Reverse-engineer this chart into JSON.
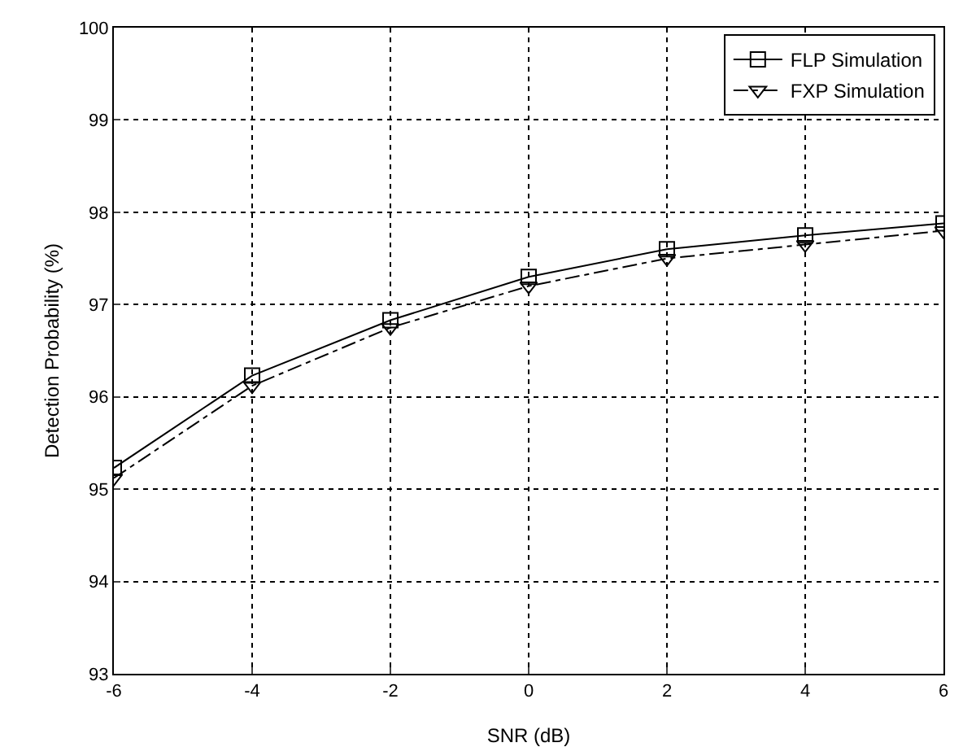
{
  "chart_data": {
    "type": "line",
    "xlabel": "SNR (dB)",
    "ylabel": "Detection Probability (%)",
    "x": [
      -6,
      -4,
      -2,
      0,
      2,
      4,
      6
    ],
    "series": [
      {
        "name": "FLP Simulation",
        "color": "#000000",
        "marker": "square",
        "line_style": "solid",
        "values": [
          95.23,
          96.23,
          96.83,
          97.3,
          97.6,
          97.75,
          97.88
        ]
      },
      {
        "name": "FXP Simulation",
        "color": "#000000",
        "marker": "triangle",
        "line_style": "dashed",
        "values": [
          95.12,
          96.12,
          96.75,
          97.2,
          97.5,
          97.65,
          97.8
        ]
      }
    ],
    "xlim": [
      -6,
      6
    ],
    "xticks": [
      -6,
      -4,
      -2,
      0,
      2,
      4,
      6
    ],
    "ylim": [
      93,
      100
    ],
    "yticks": [
      93,
      94,
      95,
      96,
      97,
      98,
      99,
      100
    ],
    "grid": true,
    "legend": "top right"
  }
}
